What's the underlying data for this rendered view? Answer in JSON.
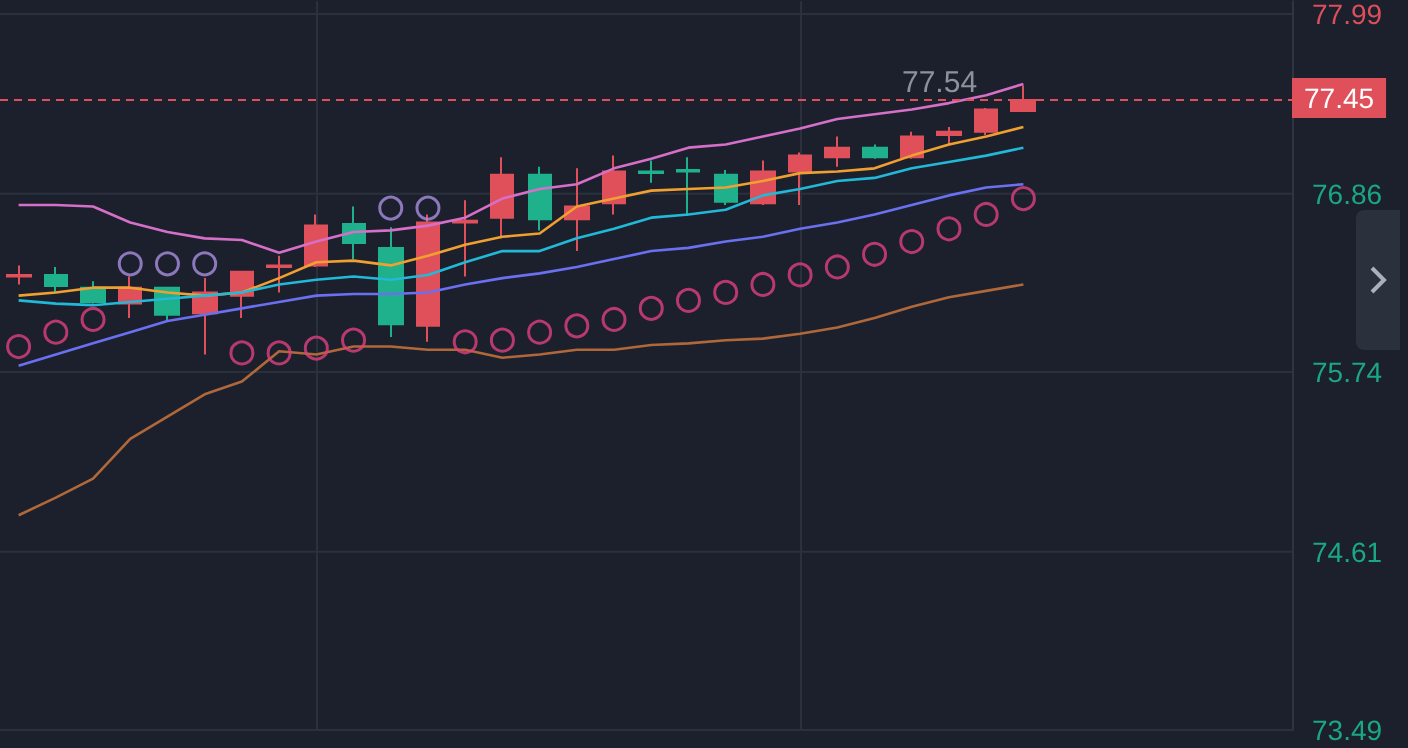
{
  "chart_data": {
    "type": "candlestick",
    "categories": [
      null,
      null,
      null,
      null,
      null,
      null,
      null,
      null,
      null,
      null,
      null,
      null,
      null,
      null,
      null,
      null,
      null,
      null,
      null,
      null,
      null,
      null,
      null,
      null,
      null,
      null,
      null,
      null
    ],
    "ohlc": [
      [
        76.35,
        76.41,
        76.29,
        76.34
      ],
      [
        76.35,
        76.4,
        76.24,
        76.28
      ],
      [
        76.27,
        76.31,
        76.17,
        76.18
      ],
      [
        76.17,
        76.34,
        76.08,
        76.27
      ],
      [
        76.27,
        76.27,
        76.06,
        76.1
      ],
      [
        76.11,
        76.33,
        75.85,
        76.24
      ],
      [
        76.22,
        76.37,
        76.08,
        76.37
      ],
      [
        76.4,
        76.47,
        76.24,
        76.41
      ],
      [
        76.41,
        76.73,
        76.4,
        76.66
      ],
      [
        76.67,
        76.78,
        76.45,
        76.55
      ],
      [
        76.52,
        76.65,
        75.96,
        76.04
      ],
      [
        76.03,
        76.73,
        75.93,
        76.68
      ],
      [
        76.68,
        76.82,
        76.34,
        76.69
      ],
      [
        76.71,
        77.09,
        76.58,
        76.98
      ],
      [
        76.98,
        77.03,
        76.63,
        76.7
      ],
      [
        76.7,
        77.02,
        76.5,
        76.78
      ],
      [
        76.8,
        77.1,
        76.73,
        77
      ],
      [
        77,
        77.07,
        76.93,
        76.99
      ],
      [
        77.01,
        77.09,
        76.72,
        77
      ],
      [
        76.98,
        77.01,
        76.79,
        76.81
      ],
      [
        76.8,
        77.07,
        76.79,
        77
      ],
      [
        77,
        77.12,
        76.79,
        77.1
      ],
      [
        77.09,
        77.22,
        77.03,
        77.15
      ],
      [
        77.15,
        77.17,
        77.08,
        77.09
      ],
      [
        77.09,
        77.25,
        77.08,
        77.22
      ],
      [
        77.23,
        77.28,
        77.17,
        77.25
      ],
      [
        77.25,
        77.4,
        77.23,
        77.39
      ],
      [
        77.38,
        77.54,
        77.38,
        77.45
      ]
    ],
    "colors": [
      "#e0505a",
      "#1fb08c",
      "#1fb08c",
      "#e0505a",
      "#1fb08c",
      "#e0505a",
      "#e0505a",
      "#e0505a",
      "#e0505a",
      "#1fb08c",
      "#1fb08c",
      "#e0505a",
      "#e0505a",
      "#e0505a",
      "#1fb08c",
      "#e0505a",
      "#e0505a",
      "#1fb08c",
      "#1fb08c",
      "#1fb08c",
      "#e0505a",
      "#e0505a",
      "#e0505a",
      "#1fb08c",
      "#e0505a",
      "#e0505a",
      "#e0505a",
      "#e0505a"
    ],
    "series": [
      {
        "type": "line",
        "color": "#d66fc8",
        "values": [
          76.79,
          76.79,
          76.78,
          76.68,
          76.62,
          76.58,
          76.57,
          76.49,
          76.56,
          76.62,
          76.63,
          76.66,
          76.71,
          76.83,
          76.89,
          76.92,
          77.02,
          77.08,
          77.15,
          77.17,
          77.22,
          77.27,
          77.33,
          77.36,
          77.39,
          77.43,
          77.48,
          77.55
        ]
      },
      {
        "type": "line",
        "color": "#f0a030",
        "values": [
          76.22,
          76.24,
          76.27,
          76.27,
          76.24,
          76.22,
          76.24,
          76.33,
          76.43,
          76.44,
          76.41,
          76.47,
          76.54,
          76.59,
          76.61,
          76.78,
          76.83,
          76.88,
          76.89,
          76.9,
          76.94,
          76.99,
          77,
          77.02,
          77.1,
          77.17,
          77.22,
          77.28
        ]
      },
      {
        "type": "line",
        "color": "#22b8d8",
        "values": [
          76.19,
          76.17,
          76.16,
          76.18,
          76.2,
          76.22,
          76.24,
          76.29,
          76.32,
          76.34,
          76.32,
          76.35,
          76.43,
          76.5,
          76.5,
          76.58,
          76.64,
          76.71,
          76.73,
          76.76,
          76.85,
          76.89,
          76.94,
          76.96,
          77.02,
          77.06,
          77.1,
          77.15
        ]
      },
      {
        "type": "line",
        "color": "#6a70f0",
        "values": [
          75.78,
          75.85,
          75.92,
          75.99,
          76.06,
          76.1,
          76.14,
          76.18,
          76.22,
          76.23,
          76.23,
          76.24,
          76.29,
          76.33,
          76.36,
          76.4,
          76.45,
          76.5,
          76.52,
          76.56,
          76.59,
          76.64,
          76.68,
          76.73,
          76.79,
          76.85,
          76.9,
          76.92
        ]
      },
      {
        "type": "line",
        "color": "#b0683a",
        "values": [
          74.84,
          74.95,
          75.07,
          75.32,
          75.46,
          75.6,
          75.68,
          75.87,
          75.85,
          75.9,
          75.9,
          75.88,
          75.88,
          75.83,
          75.85,
          75.88,
          75.88,
          75.91,
          75.92,
          75.94,
          75.95,
          75.98,
          76.02,
          76.08,
          76.15,
          76.21,
          76.25,
          76.29
        ]
      },
      {
        "type": "scatter",
        "marker": "circle",
        "color": "#e0407e",
        "values": [
          75.9,
          75.99,
          76.07,
          null,
          null,
          null,
          75.86,
          75.86,
          75.89,
          75.94,
          null,
          null,
          75.93,
          75.94,
          75.99,
          76.03,
          76.07,
          76.14,
          76.19,
          76.24,
          76.29,
          76.35,
          76.4,
          76.48,
          76.56,
          76.64,
          76.73,
          76.83
        ]
      },
      {
        "type": "scatter",
        "marker": "circle",
        "color": "#a98fe0",
        "values": [
          null,
          null,
          null,
          76.42,
          76.42,
          76.42,
          null,
          null,
          null,
          null,
          76.77,
          76.77,
          null,
          null,
          null,
          null,
          null,
          null,
          null,
          null,
          null,
          null,
          null,
          null,
          null,
          null,
          null,
          null
        ]
      }
    ],
    "ylim": [
      73.49,
      78.07
    ],
    "yticks": [
      73.49,
      74.61,
      75.74,
      76.86,
      77.99
    ],
    "grid": true,
    "tick_labels": "y",
    "ref_lines": [
      {
        "axis": "y",
        "value": 77.45,
        "label": "77.45",
        "color": "#e0505a",
        "line_style": "dashed"
      }
    ],
    "annotations": [
      "77.54"
    ]
  }
}
